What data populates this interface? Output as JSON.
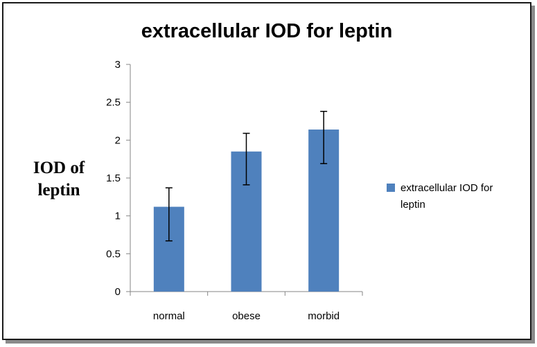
{
  "chart_data": {
    "type": "bar",
    "title": "extracellular IOD for leptin",
    "xlabel": "",
    "ylabel": "IOD of leptin",
    "ylabel_lines": [
      "IOD of",
      "leptin"
    ],
    "categories": [
      "normal",
      "obese",
      "morbid"
    ],
    "series": [
      {
        "name": "extracellular IOD for leptin",
        "values": [
          1.12,
          1.85,
          2.14
        ],
        "error_low": [
          0.67,
          1.41,
          1.69
        ],
        "error_high": [
          1.37,
          2.09,
          2.38
        ]
      }
    ],
    "ylim": [
      0,
      3
    ],
    "yticks": [
      "0",
      "0.5",
      "1",
      "1.5",
      "2",
      "2.5",
      "3"
    ],
    "grid": false,
    "legend_position": "right",
    "bar_color": "#4f81bd"
  }
}
